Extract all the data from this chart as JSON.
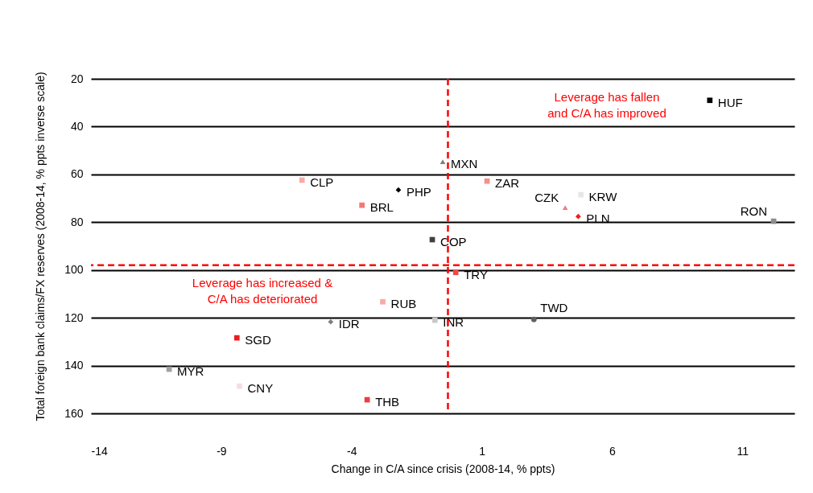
{
  "chart_data": {
    "type": "scatter",
    "xlabel": "Change in C/A since crisis (2008-14, % ppts)",
    "ylabel": "Total foreign bank claims/FX reserves  (2008-14, % ppts inverse scale)",
    "xlim": [
      -14,
      13
    ],
    "xticks": [
      -14,
      -9,
      -4,
      1,
      6,
      11
    ],
    "ylim": [
      160,
      20
    ],
    "yticks": [
      20,
      40,
      60,
      80,
      100,
      120,
      140,
      160
    ],
    "grid": "y",
    "series": [
      {
        "name": "HUF",
        "color": "#000000",
        "marker": "square",
        "x": [
          9.75
        ],
        "values": [
          29
        ]
      },
      {
        "name": "MXN",
        "color": "#808080",
        "marker": "triangle",
        "x": [
          -0.5
        ],
        "values": [
          54.7
        ]
      },
      {
        "name": "ZAR",
        "color": "#f4908a",
        "marker": "square",
        "x": [
          1.2
        ],
        "values": [
          62.8
        ]
      },
      {
        "name": "CLP",
        "color": "#f9aaa6",
        "marker": "square",
        "x": [
          -5.9
        ],
        "values": [
          62.4
        ]
      },
      {
        "name": "PHP",
        "color": "#000000",
        "marker": "diamond",
        "x": [
          -2.2
        ],
        "values": [
          66.5
        ]
      },
      {
        "name": "BRL",
        "color": "#f37a74",
        "marker": "square",
        "x": [
          -3.6
        ],
        "values": [
          72.9
        ]
      },
      {
        "name": "KRW",
        "color": "#e6e6e6",
        "marker": "square",
        "x": [
          4.8
        ],
        "values": [
          68.5
        ]
      },
      {
        "name": "CZK",
        "color": "#f47c7c",
        "marker": "triangle",
        "x": [
          4.2
        ],
        "values": [
          73.9
        ]
      },
      {
        "name": "PLN",
        "color": "#ee1c1c",
        "marker": "diamond",
        "x": [
          4.7
        ],
        "values": [
          77.6
        ]
      },
      {
        "name": "RON",
        "color": "#8c8c8c",
        "marker": "square",
        "x": [
          12.2
        ],
        "values": [
          79.6
        ]
      },
      {
        "name": "COP",
        "color": "#404040",
        "marker": "square",
        "x": [
          -0.9
        ],
        "values": [
          87.3
        ]
      },
      {
        "name": "TRY",
        "color": "#f04848",
        "marker": "square",
        "x": [
          0.0
        ],
        "values": [
          101
        ]
      },
      {
        "name": "RUB",
        "color": "#f9aaa6",
        "marker": "square",
        "x": [
          -2.8
        ],
        "values": [
          113.3
        ]
      },
      {
        "name": "TWD",
        "color": "#606060",
        "marker": "circle",
        "x": [
          3.0
        ],
        "values": [
          120.7
        ]
      },
      {
        "name": "INR",
        "color": "#c8c8c8",
        "marker": "square",
        "x": [
          -0.8
        ],
        "values": [
          121
        ]
      },
      {
        "name": "IDR",
        "color": "#808080",
        "marker": "diamond",
        "x": [
          -4.8
        ],
        "values": [
          121.7
        ]
      },
      {
        "name": "SGD",
        "color": "#ee1c1c",
        "marker": "square",
        "x": [
          -8.4
        ],
        "values": [
          128.4
        ]
      },
      {
        "name": "MYR",
        "color": "#a0a0a0",
        "marker": "square",
        "x": [
          -11.0
        ],
        "values": [
          141.5
        ]
      },
      {
        "name": "CNY",
        "color": "#fadcdc",
        "marker": "square",
        "x": [
          -8.3
        ],
        "values": [
          148.6
        ]
      },
      {
        "name": "THB",
        "color": "#f03c3c",
        "marker": "square",
        "x": [
          -3.4
        ],
        "values": [
          154.3
        ]
      }
    ],
    "ref_lines": [
      {
        "axis": "x",
        "value": -0.3,
        "color": "#ff0000",
        "line_style": "dashed"
      },
      {
        "axis": "y",
        "value": 98,
        "color": "#ff0000",
        "line_style": "dashed"
      }
    ],
    "annotations": [
      "Leverage has fallen\nand C/A has improved",
      "Leverage has  increased &\nC/A has deteriorated"
    ]
  }
}
